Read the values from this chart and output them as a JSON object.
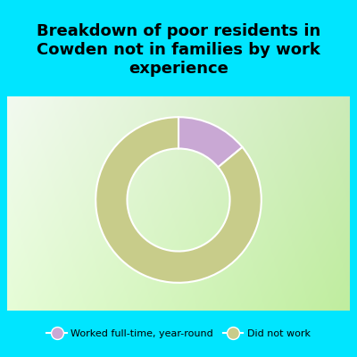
{
  "title": "Breakdown of poor residents in\nCowden not in families by work\nexperience",
  "slices": [
    0.14,
    0.86
  ],
  "colors": [
    "#c9a8d4",
    "#c8cc8a"
  ],
  "labels": [
    "Worked full-time, year-round",
    "Did not work"
  ],
  "legend_colors": [
    "#c9a8d4",
    "#c8cc8a"
  ],
  "background_color": "#00e5ff",
  "title_fontsize": 13,
  "donut_width": 0.38,
  "startangle": 90
}
